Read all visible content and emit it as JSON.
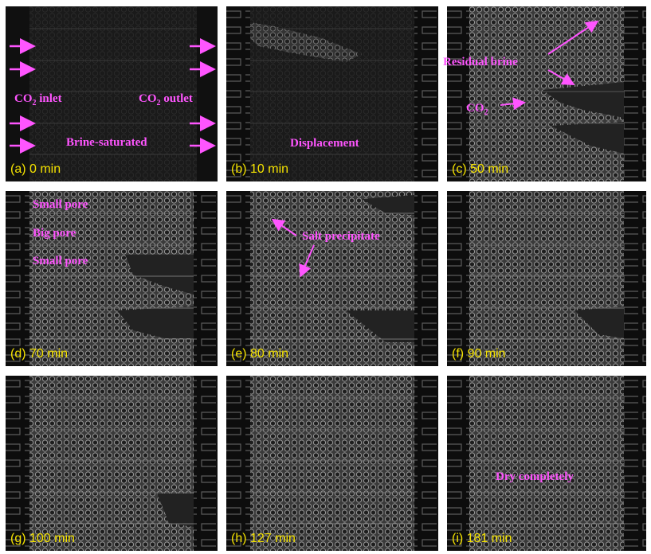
{
  "panels": [
    {
      "id": "a",
      "label": "(a) 0 min"
    },
    {
      "id": "b",
      "label": "(b) 10 min"
    },
    {
      "id": "c",
      "label": "(c) 50 min"
    },
    {
      "id": "d",
      "label": "(d) 70 min"
    },
    {
      "id": "e",
      "label": "(e) 80 min"
    },
    {
      "id": "f",
      "label": "(f) 90 min"
    },
    {
      "id": "g",
      "label": "(g) 100 min"
    },
    {
      "id": "h",
      "label": "(h) 127 min"
    },
    {
      "id": "i",
      "label": "(i) 181 min"
    }
  ],
  "annotations": {
    "co2_inlet": "CO",
    "co2_inlet_sub": "2",
    "co2_inlet_rest": " inlet",
    "co2_outlet": "CO",
    "co2_outlet_sub": "2",
    "co2_outlet_rest": " outlet",
    "brine_saturated": "Brine-saturated",
    "displacement": "Displacement",
    "residual_brine": "Residual brine",
    "co2": "CO",
    "co2_sub": "2",
    "small_pore_top": "Small pore",
    "big_pore": "Big  pore",
    "small_pore_bottom": "Small pore",
    "salt_precipitate": "Salt precipitate",
    "dry_completely": "Dry completely"
  },
  "colors": {
    "annotation": "#ff55ff",
    "time_label": "#f5e300",
    "background": "#141414"
  }
}
